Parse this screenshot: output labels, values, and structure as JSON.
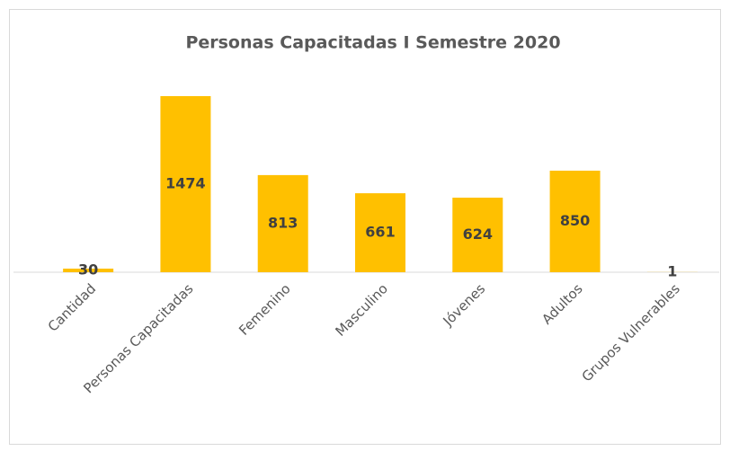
{
  "chart_data": {
    "type": "bar",
    "title": "Personas Capacitadas I Semestre 2020",
    "categories": [
      "Cantidad",
      "Personas Capacitadas",
      "Femenino",
      "Masculino",
      "Jóvenes",
      "Adultos",
      "Grupos Vulnerables"
    ],
    "values": [
      30,
      1474,
      813,
      661,
      624,
      850,
      1
    ],
    "color": "#ffc000"
  }
}
